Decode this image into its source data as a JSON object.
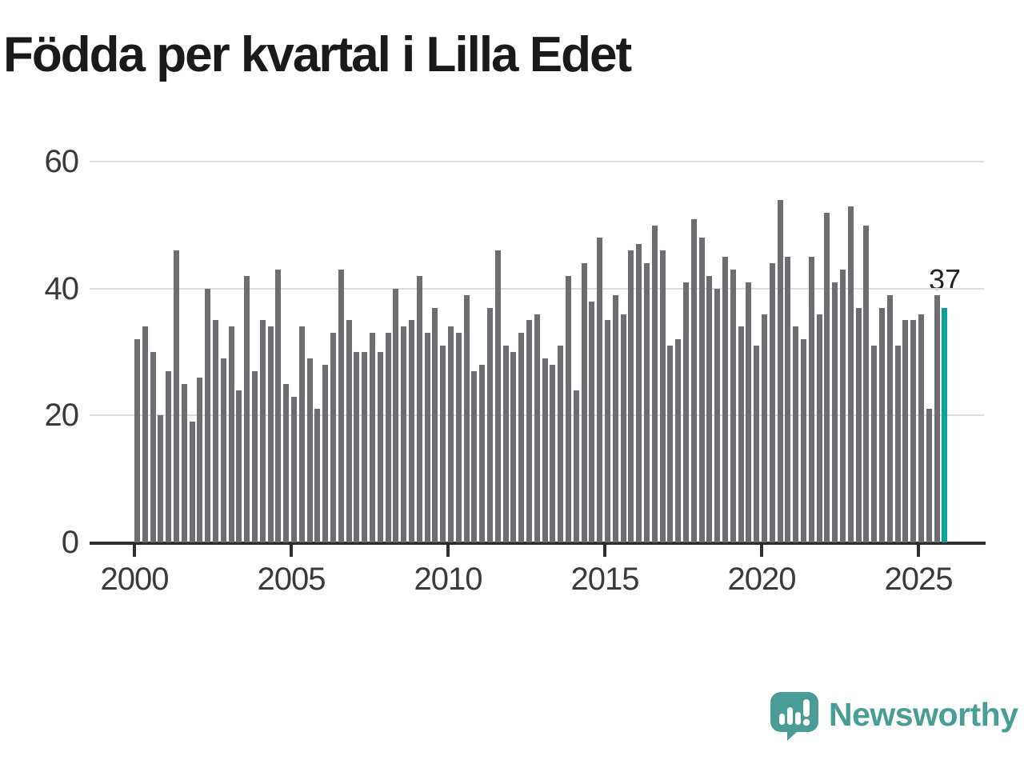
{
  "title": "Födda per kvartal i Lilla Edet",
  "annotation": {
    "last_value_label": "37"
  },
  "branding": {
    "logo_text": "Newsworthy",
    "logo_icon": "newsworthy-speech-bubble-chart-icon"
  },
  "colors": {
    "bar": "#6d6d72",
    "highlight": "#0ba29a",
    "grid": "#dcdcdc",
    "axis": "#2e2e2e",
    "title": "#1a1a1a",
    "tick_label": "#3a3a3a",
    "logo": "#4a9d97",
    "background": "#ffffff"
  },
  "chart_data": {
    "type": "bar",
    "title": "Födda per kvartal i Lilla Edet",
    "xlabel": "",
    "ylabel": "",
    "ylim": [
      0,
      60
    ],
    "yticks": [
      0,
      20,
      40,
      60
    ],
    "xticks": [
      "2000",
      "2005",
      "2010",
      "2015",
      "2020",
      "2025"
    ],
    "grid": "horizontal-only",
    "legend": "none",
    "highlight_index": 103,
    "highlight_value": 37,
    "categories": [
      "2000 Q1",
      "2000 Q2",
      "2000 Q3",
      "2000 Q4",
      "2001 Q1",
      "2001 Q2",
      "2001 Q3",
      "2001 Q4",
      "2002 Q1",
      "2002 Q2",
      "2002 Q3",
      "2002 Q4",
      "2003 Q1",
      "2003 Q2",
      "2003 Q3",
      "2003 Q4",
      "2004 Q1",
      "2004 Q2",
      "2004 Q3",
      "2004 Q4",
      "2005 Q1",
      "2005 Q2",
      "2005 Q3",
      "2005 Q4",
      "2006 Q1",
      "2006 Q2",
      "2006 Q3",
      "2006 Q4",
      "2007 Q1",
      "2007 Q2",
      "2007 Q3",
      "2007 Q4",
      "2008 Q1",
      "2008 Q2",
      "2008 Q3",
      "2008 Q4",
      "2009 Q1",
      "2009 Q2",
      "2009 Q3",
      "2009 Q4",
      "2010 Q1",
      "2010 Q2",
      "2010 Q3",
      "2010 Q4",
      "2011 Q1",
      "2011 Q2",
      "2011 Q3",
      "2011 Q4",
      "2012 Q1",
      "2012 Q2",
      "2012 Q3",
      "2012 Q4",
      "2013 Q1",
      "2013 Q2",
      "2013 Q3",
      "2013 Q4",
      "2014 Q1",
      "2014 Q2",
      "2014 Q3",
      "2014 Q4",
      "2015 Q1",
      "2015 Q2",
      "2015 Q3",
      "2015 Q4",
      "2016 Q1",
      "2016 Q2",
      "2016 Q3",
      "2016 Q4",
      "2017 Q1",
      "2017 Q2",
      "2017 Q3",
      "2017 Q4",
      "2018 Q1",
      "2018 Q2",
      "2018 Q3",
      "2018 Q4",
      "2019 Q1",
      "2019 Q2",
      "2019 Q3",
      "2019 Q4",
      "2020 Q1",
      "2020 Q2",
      "2020 Q3",
      "2020 Q4",
      "2021 Q1",
      "2021 Q2",
      "2021 Q3",
      "2021 Q4",
      "2022 Q1",
      "2022 Q2",
      "2022 Q3",
      "2022 Q4",
      "2023 Q1",
      "2023 Q2",
      "2023 Q3",
      "2023 Q4",
      "2024 Q1",
      "2024 Q2",
      "2024 Q3",
      "2024 Q4",
      "2025 Q1",
      "2025 Q2",
      "2025 Q3",
      "2025 Q4"
    ],
    "values": [
      32,
      34,
      30,
      20,
      27,
      46,
      25,
      19,
      26,
      40,
      35,
      29,
      34,
      24,
      42,
      27,
      35,
      34,
      43,
      25,
      23,
      34,
      29,
      21,
      28,
      33,
      43,
      35,
      30,
      30,
      33,
      30,
      33,
      40,
      34,
      35,
      42,
      33,
      37,
      31,
      34,
      33,
      39,
      27,
      28,
      37,
      46,
      31,
      30,
      33,
      35,
      36,
      29,
      28,
      31,
      42,
      24,
      44,
      38,
      48,
      35,
      39,
      36,
      46,
      47,
      44,
      50,
      46,
      31,
      32,
      41,
      51,
      48,
      42,
      40,
      45,
      43,
      34,
      41,
      31,
      36,
      44,
      54,
      45,
      34,
      32,
      45,
      36,
      52,
      41,
      43,
      53,
      37,
      50,
      31,
      37,
      39,
      31,
      35,
      35,
      36,
      21,
      39,
      37
    ]
  }
}
